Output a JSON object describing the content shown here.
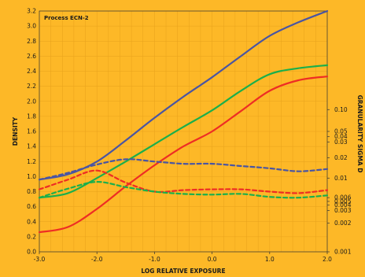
{
  "chart_data": {
    "type": "line",
    "annotation": "Process ECN-2",
    "xlabel": "LOG RELATIVE EXPOSURE",
    "ylabel": "DENSITY",
    "y2label": "GRANULARITY SIGMA D",
    "xlim": [
      -3.0,
      2.0
    ],
    "ylim": [
      0.0,
      3.2
    ],
    "x_ticks": [
      "-3.0",
      "-2.0",
      "-1.0",
      "0.0",
      "1.0",
      "2.0"
    ],
    "y_ticks": [
      "0.0",
      "0.2",
      "0.4",
      "0.6",
      "0.8",
      "1.0",
      "1.2",
      "1.4",
      "1.6",
      "1.8",
      "2.0",
      "2.2",
      "2.4",
      "2.6",
      "2.8",
      "3.0",
      "3.2"
    ],
    "y2_ticks": [
      {
        "label": "0.10",
        "density": 1.89
      },
      {
        "label": "0.05",
        "density": 1.6
      },
      {
        "label": "0.04",
        "density": 1.53
      },
      {
        "label": "0.03",
        "density": 1.46
      },
      {
        "label": "0.02",
        "density": 1.25
      },
      {
        "label": "0.01",
        "density": 0.98
      },
      {
        "label": "0.006",
        "density": 0.72
      },
      {
        "label": "0.005",
        "density": 0.67
      },
      {
        "label": "0.004",
        "density": 0.62
      },
      {
        "label": "0.003",
        "density": 0.55
      },
      {
        "label": "0.002",
        "density": 0.38
      },
      {
        "label": "0.001",
        "density": 0.0
      }
    ],
    "grid": true,
    "series": [
      {
        "color": "#4A55A2",
        "dashed": false,
        "x": [
          -3.0,
          -2.5,
          -2.0,
          -1.5,
          -1.0,
          -0.5,
          0.0,
          0.5,
          1.0,
          1.5,
          2.0
        ],
        "y": [
          0.96,
          1.03,
          1.2,
          1.48,
          1.78,
          2.06,
          2.32,
          2.6,
          2.87,
          3.05,
          3.2
        ]
      },
      {
        "color": "#1BAF4B",
        "dashed": false,
        "x": [
          -3.0,
          -2.5,
          -2.0,
          -1.5,
          -1.0,
          -0.5,
          0.0,
          0.5,
          1.0,
          1.5,
          2.0
        ],
        "y": [
          0.72,
          0.78,
          0.98,
          1.2,
          1.43,
          1.66,
          1.88,
          2.14,
          2.36,
          2.44,
          2.48
        ]
      },
      {
        "color": "#EE2D24",
        "dashed": false,
        "x": [
          -3.0,
          -2.5,
          -2.0,
          -1.5,
          -1.0,
          -0.5,
          0.0,
          0.5,
          1.0,
          1.5,
          2.0
        ],
        "y": [
          0.26,
          0.33,
          0.57,
          0.87,
          1.15,
          1.4,
          1.6,
          1.87,
          2.14,
          2.28,
          2.33
        ]
      },
      {
        "color": "#4A55A2",
        "dashed": true,
        "x": [
          -3.0,
          -2.5,
          -2.0,
          -1.5,
          -1.0,
          -0.5,
          0.0,
          0.5,
          1.0,
          1.5,
          2.0
        ],
        "y": [
          0.96,
          1.05,
          1.16,
          1.23,
          1.2,
          1.17,
          1.17,
          1.14,
          1.11,
          1.07,
          1.1
        ]
      },
      {
        "color": "#EE2D24",
        "dashed": true,
        "x": [
          -3.0,
          -2.5,
          -2.0,
          -1.5,
          -1.0,
          -0.5,
          0.0,
          0.5,
          1.0,
          1.5,
          2.0
        ],
        "y": [
          0.83,
          0.96,
          1.08,
          0.92,
          0.8,
          0.82,
          0.83,
          0.83,
          0.8,
          0.78,
          0.82
        ]
      },
      {
        "color": "#1BAF4B",
        "dashed": true,
        "x": [
          -3.0,
          -2.5,
          -2.0,
          -1.5,
          -1.0,
          -0.5,
          0.0,
          0.5,
          1.0,
          1.5,
          2.0
        ],
        "y": [
          0.72,
          0.84,
          0.93,
          0.86,
          0.8,
          0.77,
          0.76,
          0.77,
          0.73,
          0.72,
          0.75
        ]
      }
    ]
  }
}
